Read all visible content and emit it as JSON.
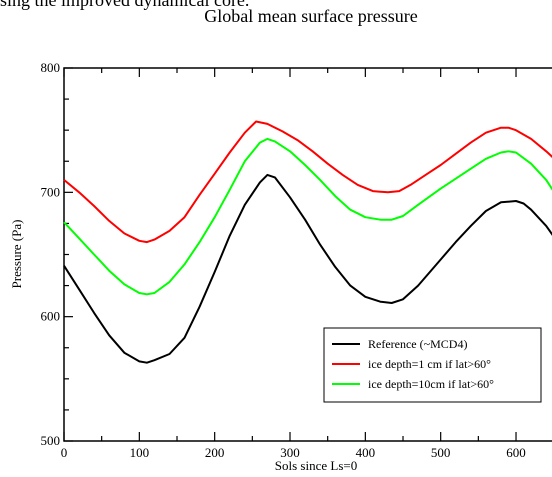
{
  "page": {
    "cropped_caption_text": "sing the improved dynamical core."
  },
  "chart_data": {
    "type": "line",
    "title": "Global mean surface pressure",
    "xlabel": "Sols since Ls=0",
    "ylabel": "Pressure (Pa)",
    "xlim": [
      0,
      669
    ],
    "ylim": [
      500,
      800
    ],
    "xticks": [
      0,
      100,
      200,
      300,
      400,
      500,
      600
    ],
    "yticks": [
      500,
      600,
      700,
      800
    ],
    "grid": false,
    "legend_position": "bottom-right",
    "series": [
      {
        "name": "Reference (~MCD4)",
        "color": "#000000",
        "x": [
          0,
          20,
          40,
          60,
          80,
          100,
          110,
          120,
          140,
          160,
          180,
          200,
          220,
          240,
          260,
          270,
          280,
          300,
          320,
          340,
          360,
          380,
          400,
          420,
          435,
          450,
          470,
          500,
          520,
          540,
          560,
          580,
          600,
          610,
          620,
          640,
          669
        ],
        "values": [
          641,
          622,
          603,
          585,
          571,
          564,
          563,
          565,
          570,
          583,
          608,
          636,
          665,
          690,
          708,
          714,
          712,
          696,
          678,
          658,
          640,
          625,
          616,
          612,
          611,
          614,
          625,
          646,
          660,
          673,
          685,
          692,
          693,
          691,
          686,
          673,
          648
        ]
      },
      {
        "name": "ice depth=1 cm if lat>60°",
        "color": "#ff0000",
        "x": [
          0,
          20,
          40,
          60,
          80,
          100,
          110,
          120,
          140,
          160,
          180,
          200,
          220,
          240,
          255,
          270,
          290,
          310,
          330,
          350,
          370,
          390,
          410,
          430,
          445,
          460,
          480,
          500,
          520,
          540,
          560,
          580,
          590,
          600,
          620,
          640,
          669
        ],
        "values": [
          710,
          700,
          689,
          677,
          667,
          661,
          660,
          662,
          669,
          680,
          698,
          715,
          732,
          748,
          757,
          755,
          749,
          742,
          733,
          723,
          714,
          706,
          701,
          700,
          701,
          706,
          714,
          722,
          731,
          740,
          748,
          752,
          752,
          750,
          743,
          733,
          717
        ]
      },
      {
        "name": "ice depth=10cm if lat>60°",
        "color": "#00ff00",
        "x": [
          0,
          20,
          40,
          60,
          80,
          100,
          110,
          120,
          140,
          160,
          180,
          200,
          220,
          240,
          260,
          270,
          280,
          300,
          320,
          340,
          360,
          380,
          400,
          420,
          435,
          450,
          470,
          500,
          520,
          540,
          560,
          580,
          590,
          600,
          620,
          640,
          669
        ],
        "values": [
          676,
          663,
          650,
          637,
          626,
          619,
          618,
          619,
          628,
          642,
          660,
          680,
          702,
          725,
          740,
          743,
          741,
          733,
          722,
          710,
          697,
          686,
          680,
          678,
          678,
          681,
          690,
          703,
          711,
          719,
          727,
          732,
          733,
          732,
          723,
          710,
          683
        ]
      }
    ]
  }
}
